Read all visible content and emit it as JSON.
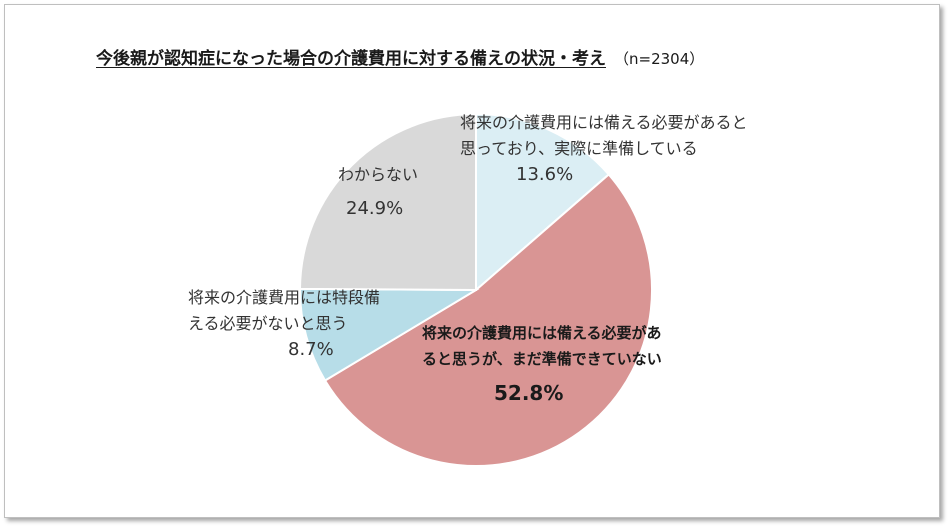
{
  "chart_data": {
    "type": "pie",
    "title": "今後親が認知症になった場合の介護費用に対する備えの状況・考え",
    "sample_size": "（n=2304）",
    "start_angle_deg": 0,
    "direction": "clockwise",
    "slices": [
      {
        "label_line1": "将来の介護費用には備える必要があると",
        "label_line2": "思っており、実際に準備している",
        "value": 13.6,
        "value_label": "13.6%",
        "color": "#dbeef4"
      },
      {
        "label_line1": "将来の介護費用には備える必要があ",
        "label_line2": "ると思うが、まだ準備できていない",
        "value": 52.8,
        "value_label": "52.8%",
        "color": "#d99594"
      },
      {
        "label_line1": "将来の介護費用には特段備",
        "label_line2": "える必要がないと思う",
        "value": 8.7,
        "value_label": "8.7%",
        "color": "#b7dde8"
      },
      {
        "label_line1": "わからない",
        "label_line2": "",
        "value": 24.9,
        "value_label": "24.9%",
        "color": "#d9d9d9"
      }
    ]
  }
}
